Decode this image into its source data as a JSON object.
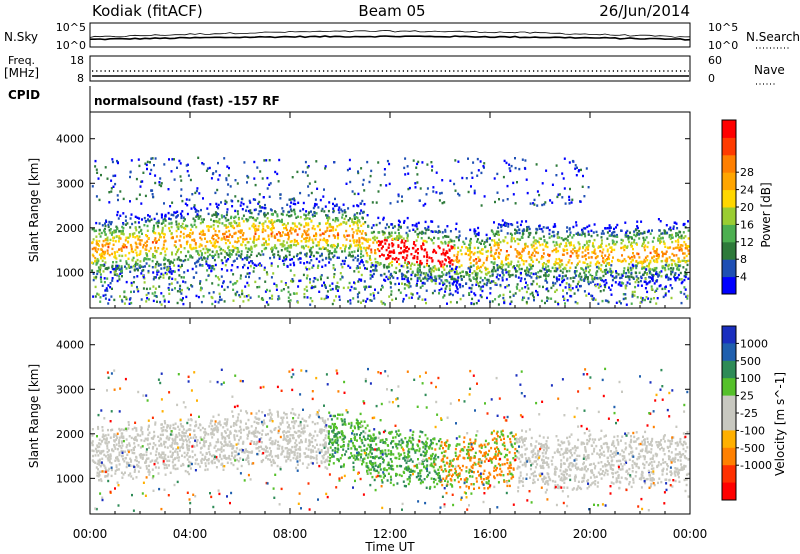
{
  "header": {
    "station": "Kodiak (fitACF)",
    "beam": "Beam 05",
    "date": "26/Jun/2014"
  },
  "top_panels": {
    "nsky_label": "N.Sky",
    "nsearch_label": "N.Search",
    "nsky_ticks": [
      "10^5",
      "10^0"
    ],
    "nsearch_ticks": [
      "10^5",
      "10^0"
    ],
    "freq_label_1": "Freq.",
    "freq_label_2": "[MHz]",
    "freq_ticks": [
      "18",
      "8"
    ],
    "nave_label": "Nave",
    "nave_ticks": [
      "60",
      "0"
    ],
    "cpid_label": "CPID",
    "cpid_text": "normalsound (fast) -157 RF"
  },
  "chart_data": [
    {
      "type": "heatmap",
      "panel": "power",
      "ylabel": "Slant Range [km]",
      "yticks": [
        1000,
        2000,
        3000,
        4000
      ],
      "ylim": [
        200,
        4600
      ],
      "xlabel": "Time UT",
      "xticks": [
        "00:00",
        "04:00",
        "08:00",
        "12:00",
        "16:00",
        "20:00",
        "00:00"
      ],
      "xlim_hours": [
        0,
        24
      ],
      "colorbar": {
        "label": "Power [dB]",
        "ticks": [
          "4",
          "8",
          "12",
          "16",
          "20",
          "24",
          "28"
        ],
        "colors": [
          "#0000ff",
          "#1e4fb4",
          "#2e7a3a",
          "#4caf50",
          "#9acd32",
          "#ffd700",
          "#ffa500",
          "#ff7f00",
          "#ff3b00",
          "#ff0000"
        ]
      }
    },
    {
      "type": "heatmap",
      "panel": "velocity",
      "ylabel": "Slant Range [km]",
      "yticks": [
        1000,
        2000,
        3000,
        4000
      ],
      "ylim": [
        200,
        4600
      ],
      "xlabel": "Time UT",
      "xticks": [
        "00:00",
        "04:00",
        "08:00",
        "12:00",
        "16:00",
        "20:00",
        "00:00"
      ],
      "xlim_hours": [
        0,
        24
      ],
      "colorbar": {
        "label": "Velocity [m s^-1]",
        "ticks": [
          "1000",
          "500",
          "100",
          "25",
          "-25",
          "-100",
          "-500",
          "-1000"
        ],
        "colors": [
          "#1a2fbf",
          "#1f5fae",
          "#2e8b57",
          "#55c02a",
          "#c8c8c0",
          "#c8c8c0",
          "#ffb000",
          "#ff8000",
          "#ff3000",
          "#ff0000"
        ]
      }
    }
  ]
}
